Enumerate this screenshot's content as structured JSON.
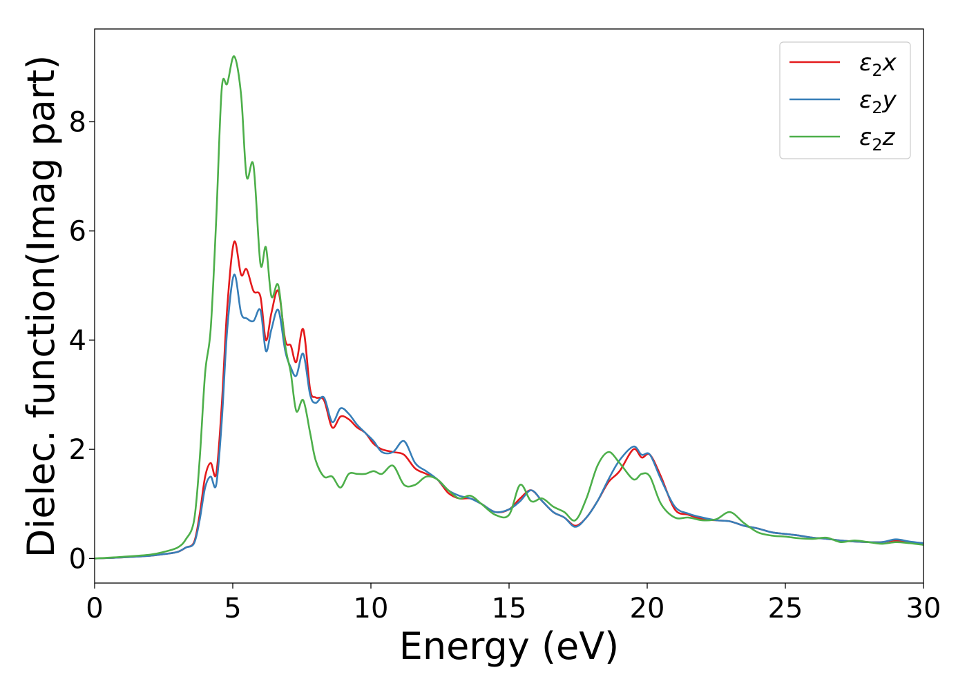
{
  "chart_data": {
    "type": "line",
    "xlabel": "Energy (eV)",
    "ylabel": "Dielec. function(Imag part)",
    "xlim": [
      0,
      30
    ],
    "ylim": [
      -0.45,
      9.7
    ],
    "xticks": [
      0,
      5,
      10,
      15,
      20,
      25,
      30
    ],
    "yticks": [
      0,
      2,
      4,
      6,
      8
    ],
    "grid": false,
    "legend_position": "top-right",
    "series": [
      {
        "name": "ε₂x",
        "legend_base": "ε",
        "legend_sub": "2",
        "legend_tail": "x",
        "color": "#e41a1c",
        "x": [
          0,
          1,
          2,
          2.5,
          3,
          3.3,
          3.6,
          3.8,
          4,
          4.2,
          4.4,
          4.6,
          4.8,
          5.05,
          5.3,
          5.5,
          5.75,
          6,
          6.2,
          6.4,
          6.65,
          6.9,
          7.1,
          7.3,
          7.55,
          7.8,
          8,
          8.3,
          8.6,
          8.9,
          9.2,
          9.5,
          9.8,
          10.1,
          10.4,
          10.8,
          11.2,
          11.6,
          12,
          12.4,
          12.8,
          13.2,
          13.6,
          14,
          14.5,
          15,
          15.4,
          15.8,
          16.2,
          16.6,
          17,
          17.4,
          17.8,
          18.2,
          18.6,
          19,
          19.5,
          19.8,
          20.1,
          20.5,
          21,
          21.5,
          22,
          22.5,
          23,
          23.5,
          24,
          24.5,
          25,
          25.5,
          26,
          26.5,
          27,
          27.5,
          28,
          28.5,
          29,
          29.5,
          30
        ],
        "y": [
          0,
          0.02,
          0.05,
          0.08,
          0.12,
          0.2,
          0.3,
          0.8,
          1.5,
          1.75,
          1.55,
          2.8,
          4.6,
          5.8,
          5.2,
          5.3,
          4.9,
          4.8,
          4.0,
          4.5,
          4.9,
          4.0,
          3.9,
          3.6,
          4.2,
          3.1,
          2.95,
          2.9,
          2.4,
          2.6,
          2.55,
          2.4,
          2.3,
          2.1,
          2.0,
          1.95,
          1.9,
          1.65,
          1.55,
          1.45,
          1.2,
          1.1,
          1.1,
          1.0,
          0.85,
          0.9,
          1.1,
          1.25,
          1.05,
          0.85,
          0.75,
          0.6,
          0.75,
          1.05,
          1.4,
          1.6,
          2.0,
          1.85,
          1.9,
          1.5,
          0.9,
          0.8,
          0.72,
          0.7,
          0.68,
          0.6,
          0.55,
          0.48,
          0.45,
          0.42,
          0.38,
          0.36,
          0.33,
          0.31,
          0.3,
          0.3,
          0.33,
          0.3,
          0.28
        ]
      },
      {
        "name": "ε₂y",
        "legend_base": "ε",
        "legend_sub": "2",
        "legend_tail": "y",
        "color": "#377eb8",
        "x": [
          0,
          1,
          2,
          2.5,
          3,
          3.3,
          3.6,
          3.8,
          4,
          4.2,
          4.4,
          4.6,
          4.8,
          5.05,
          5.3,
          5.5,
          5.75,
          6,
          6.2,
          6.4,
          6.65,
          6.9,
          7.1,
          7.3,
          7.55,
          7.8,
          8,
          8.3,
          8.6,
          8.9,
          9.2,
          9.5,
          9.8,
          10.1,
          10.4,
          10.8,
          11.2,
          11.6,
          12,
          12.4,
          12.8,
          13.2,
          13.6,
          14,
          14.5,
          15,
          15.4,
          15.8,
          16.2,
          16.6,
          17,
          17.4,
          17.8,
          18.2,
          18.6,
          19,
          19.5,
          19.8,
          20.1,
          20.5,
          21,
          21.5,
          22,
          22.5,
          23,
          23.5,
          24,
          24.5,
          25,
          25.5,
          26,
          26.5,
          27,
          27.5,
          28,
          28.5,
          29,
          29.5,
          30
        ],
        "y": [
          0,
          0.02,
          0.05,
          0.08,
          0.12,
          0.2,
          0.28,
          0.7,
          1.3,
          1.5,
          1.35,
          2.5,
          4.2,
          5.2,
          4.5,
          4.4,
          4.35,
          4.55,
          3.8,
          4.2,
          4.55,
          3.8,
          3.5,
          3.35,
          3.75,
          3.0,
          2.85,
          2.95,
          2.5,
          2.75,
          2.65,
          2.45,
          2.3,
          2.15,
          1.95,
          1.95,
          2.15,
          1.75,
          1.6,
          1.45,
          1.25,
          1.15,
          1.1,
          1.0,
          0.85,
          0.9,
          1.05,
          1.25,
          1.05,
          0.85,
          0.75,
          0.58,
          0.75,
          1.05,
          1.45,
          1.8,
          2.05,
          1.9,
          1.9,
          1.45,
          0.95,
          0.82,
          0.75,
          0.7,
          0.68,
          0.6,
          0.55,
          0.48,
          0.45,
          0.42,
          0.38,
          0.36,
          0.33,
          0.31,
          0.3,
          0.3,
          0.35,
          0.31,
          0.28
        ]
      },
      {
        "name": "ε₂z",
        "legend_base": "ε",
        "legend_sub": "2",
        "legend_tail": "z",
        "color": "#4daf4a",
        "x": [
          0,
          1,
          2,
          2.5,
          3,
          3.3,
          3.6,
          3.8,
          4,
          4.2,
          4.4,
          4.6,
          4.8,
          5.05,
          5.3,
          5.5,
          5.75,
          6,
          6.2,
          6.4,
          6.65,
          6.9,
          7.1,
          7.3,
          7.55,
          7.8,
          8,
          8.3,
          8.6,
          8.9,
          9.2,
          9.5,
          9.8,
          10.1,
          10.4,
          10.8,
          11.2,
          11.6,
          12,
          12.4,
          12.8,
          13.2,
          13.6,
          14,
          14.5,
          15,
          15.4,
          15.8,
          16.2,
          16.6,
          17,
          17.4,
          17.8,
          18.2,
          18.6,
          19,
          19.5,
          19.8,
          20.1,
          20.5,
          21,
          21.5,
          22,
          22.5,
          23,
          23.5,
          24,
          24.5,
          25,
          25.5,
          26,
          26.5,
          27,
          27.5,
          28,
          28.5,
          29,
          29.5,
          30
        ],
        "y": [
          0,
          0.03,
          0.07,
          0.12,
          0.2,
          0.35,
          0.7,
          1.8,
          3.4,
          4.2,
          6.2,
          8.6,
          8.7,
          9.2,
          8.5,
          7.0,
          7.2,
          5.4,
          5.7,
          4.8,
          5.0,
          3.9,
          3.4,
          2.7,
          2.9,
          2.3,
          1.8,
          1.5,
          1.5,
          1.3,
          1.55,
          1.55,
          1.55,
          1.6,
          1.55,
          1.7,
          1.35,
          1.35,
          1.5,
          1.45,
          1.25,
          1.1,
          1.15,
          1.0,
          0.8,
          0.8,
          1.35,
          1.05,
          1.1,
          0.95,
          0.85,
          0.7,
          1.1,
          1.7,
          1.95,
          1.75,
          1.45,
          1.55,
          1.5,
          1.0,
          0.75,
          0.75,
          0.7,
          0.72,
          0.85,
          0.65,
          0.48,
          0.42,
          0.4,
          0.37,
          0.36,
          0.38,
          0.3,
          0.33,
          0.3,
          0.27,
          0.3,
          0.28,
          0.25
        ]
      }
    ]
  }
}
